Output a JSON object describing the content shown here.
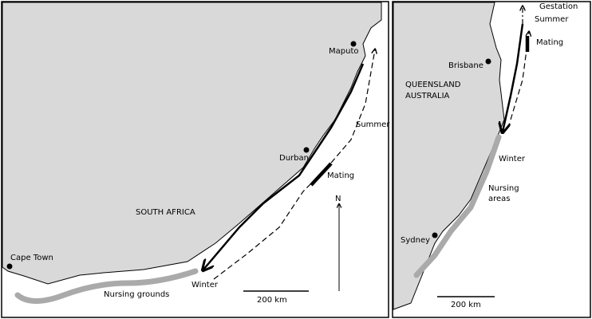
{
  "panels": [
    {
      "labels": [
        "Maputo",
        "Summer",
        "Durban",
        "Mating",
        "SOUTH AFRICA",
        "N",
        "Cape Town",
        "Winter",
        "Nursing grounds",
        "200 km"
      ]
    },
    {
      "labels": [
        "Gestation",
        "Summer",
        "Mating",
        "Brisbane",
        "QUEENSLAND",
        "AUSTRALIA",
        "Winter",
        "Nursing",
        "areas",
        "Sydney",
        "200 km"
      ]
    }
  ]
}
